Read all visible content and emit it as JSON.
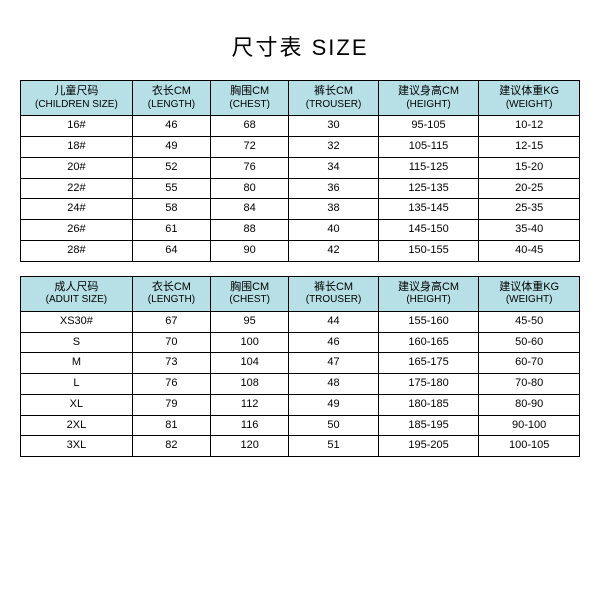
{
  "title": "尺寸表 SIZE",
  "header_bg": "#b7e0e6",
  "border_color": "#000000",
  "col_widths_pct": [
    20,
    14,
    14,
    16,
    18,
    18
  ],
  "children": {
    "headers": [
      {
        "l1": "儿童尺码",
        "l2": "(CHILDREN SIZE)"
      },
      {
        "l1": "衣长CM",
        "l2": "(LENGTH)"
      },
      {
        "l1": "胸围CM",
        "l2": "(CHEST)"
      },
      {
        "l1": "裤长CM",
        "l2": "(TROUSER)"
      },
      {
        "l1": "建议身高CM",
        "l2": "(HEIGHT)"
      },
      {
        "l1": "建议体重KG",
        "l2": "(WEIGHT)"
      }
    ],
    "rows": [
      [
        "16#",
        "46",
        "68",
        "30",
        "95-105",
        "10-12"
      ],
      [
        "18#",
        "49",
        "72",
        "32",
        "105-115",
        "12-15"
      ],
      [
        "20#",
        "52",
        "76",
        "34",
        "115-125",
        "15-20"
      ],
      [
        "22#",
        "55",
        "80",
        "36",
        "125-135",
        "20-25"
      ],
      [
        "24#",
        "58",
        "84",
        "38",
        "135-145",
        "25-35"
      ],
      [
        "26#",
        "61",
        "88",
        "40",
        "145-150",
        "35-40"
      ],
      [
        "28#",
        "64",
        "90",
        "42",
        "150-155",
        "40-45"
      ]
    ]
  },
  "adult": {
    "headers": [
      {
        "l1": "成人尺码",
        "l2": "(ADUIT SIZE)"
      },
      {
        "l1": "衣长CM",
        "l2": "(LENGTH)"
      },
      {
        "l1": "胸围CM",
        "l2": "(CHEST)"
      },
      {
        "l1": "裤长CM",
        "l2": "(TROUSER)"
      },
      {
        "l1": "建议身高CM",
        "l2": "(HEIGHT)"
      },
      {
        "l1": "建议体重KG",
        "l2": "(WEIGHT)"
      }
    ],
    "rows": [
      [
        "XS30#",
        "67",
        "95",
        "44",
        "155-160",
        "45-50"
      ],
      [
        "S",
        "70",
        "100",
        "46",
        "160-165",
        "50-60"
      ],
      [
        "M",
        "73",
        "104",
        "47",
        "165-175",
        "60-70"
      ],
      [
        "L",
        "76",
        "108",
        "48",
        "175-180",
        "70-80"
      ],
      [
        "XL",
        "79",
        "112",
        "49",
        "180-185",
        "80-90"
      ],
      [
        "2XL",
        "81",
        "116",
        "50",
        "185-195",
        "90-100"
      ],
      [
        "3XL",
        "82",
        "120",
        "51",
        "195-205",
        "100-105"
      ]
    ]
  }
}
